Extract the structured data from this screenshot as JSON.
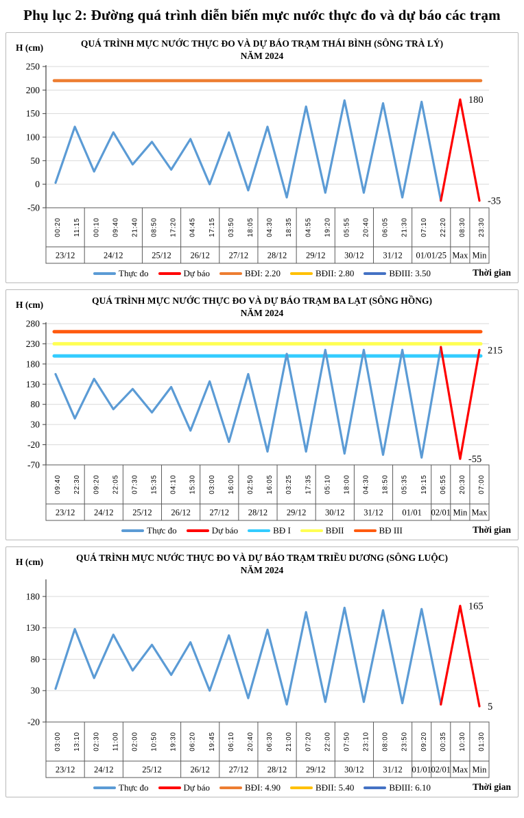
{
  "page": {
    "title": "Phụ lục 2: Đường quá trình diễn biến mực nước thực đo và dự báo các trạm"
  },
  "chart_data": [
    {
      "type": "line",
      "title": "QUÁ TRÌNH MỰC NƯỚC THỰC ĐO VÀ DỰ BÁO TRẠM THÁI BÌNH (SÔNG TRÀ LÝ)\nNĂM 2024",
      "y_unit": "H (cm)",
      "x_axis_label": "Thời gian",
      "y_ticks": [
        250,
        200,
        150,
        100,
        50,
        0,
        -50
      ],
      "y_min": -50,
      "y_max": 250,
      "grid": true,
      "times": [
        "00:20",
        "11:15",
        "00:10",
        "09:40",
        "21:40",
        "08:50",
        "17:20",
        "04:45",
        "17:15",
        "03:50",
        "18:05",
        "04:30",
        "18:35",
        "04:55",
        "19:20",
        "05:55",
        "20:40",
        "06:05",
        "21:30",
        "07:10",
        "22:20",
        "08:30",
        "23:30"
      ],
      "date_groups": [
        {
          "label": "23/12",
          "count": 2
        },
        {
          "label": "24/12",
          "count": 3
        },
        {
          "label": "25/12",
          "count": 2
        },
        {
          "label": "26/12",
          "count": 2
        },
        {
          "label": "27/12",
          "count": 2
        },
        {
          "label": "28/12",
          "count": 2
        },
        {
          "label": "29/12",
          "count": 2
        },
        {
          "label": "30/12",
          "count": 2
        },
        {
          "label": "31/12",
          "count": 2
        },
        {
          "label": "01/01/25",
          "count": 2
        },
        {
          "label": "Max",
          "count": 1
        },
        {
          "label": "Min",
          "count": 1
        }
      ],
      "series": [
        {
          "name": "Thực đo",
          "color": "#5B9BD5",
          "start_index": 0,
          "values": [
            3,
            122,
            27,
            110,
            42,
            90,
            31,
            96,
            0,
            110,
            -13,
            122,
            -28,
            165,
            -18,
            178,
            -18,
            172,
            -28,
            175,
            -35
          ]
        },
        {
          "name": "Dự báo",
          "color": "#FF0000",
          "start_index": 20,
          "values": [
            -35,
            180,
            -35
          ]
        }
      ],
      "ref_lines": [
        {
          "name": "BĐI",
          "value": 220,
          "color": "#ED7D31",
          "width": 4.5
        }
      ],
      "annotations": [
        {
          "text": "180",
          "index": 21,
          "value": 180
        },
        {
          "text": "-35",
          "index": 22,
          "value": -35
        }
      ],
      "legend": [
        {
          "label": "Thực đo",
          "color": "#5B9BD5"
        },
        {
          "label": "Dự báo",
          "color": "#FF0000"
        },
        {
          "label": "BĐI: 2.20",
          "color": "#ED7D31"
        },
        {
          "label": "BĐII: 2.80",
          "color": "#FFC000"
        },
        {
          "label": "BĐIII: 3.50",
          "color": "#4472C4"
        }
      ]
    },
    {
      "type": "line",
      "title": "QUÁ TRÌNH MỰC NƯỚC THỰC ĐO VÀ DỰ BÁO TRẠM BA LẠT (SÔNG HỒNG)\nNĂM 2024",
      "y_unit": "H (cm)",
      "x_axis_label": "Thời gian",
      "y_ticks": [
        280,
        230,
        180,
        130,
        80,
        30,
        -20,
        -70
      ],
      "y_min": -70,
      "y_max": 280,
      "grid": true,
      "times": [
        "09:40",
        "22:30",
        "09:20",
        "22:05",
        "07:30",
        "15:35",
        "04:10",
        "15:30",
        "03:00",
        "16:00",
        "02:50",
        "16:05",
        "03:25",
        "17:35",
        "05:10",
        "18:00",
        "04:30",
        "18:50",
        "05:35",
        "19:15",
        "06:55",
        "20:30",
        "07:00"
      ],
      "date_groups": [
        {
          "label": "23/12",
          "count": 2
        },
        {
          "label": "24/12",
          "count": 2
        },
        {
          "label": "25/12",
          "count": 2
        },
        {
          "label": "26/12",
          "count": 2
        },
        {
          "label": "27/12",
          "count": 2
        },
        {
          "label": "28/12",
          "count": 2
        },
        {
          "label": "29/12",
          "count": 2
        },
        {
          "label": "30/12",
          "count": 2
        },
        {
          "label": "31/12",
          "count": 2
        },
        {
          "label": "01/01",
          "count": 2
        },
        {
          "label": "02/01",
          "count": 1
        },
        {
          "label": "Min",
          "count": 1
        },
        {
          "label": "Max",
          "count": 1
        }
      ],
      "series": [
        {
          "name": "Thực đo",
          "color": "#5B9BD5",
          "start_index": 0,
          "values": [
            155,
            45,
            143,
            68,
            118,
            60,
            123,
            15,
            137,
            -13,
            155,
            -37,
            205,
            -37,
            215,
            -42,
            215,
            -45,
            215,
            -52,
            222
          ]
        },
        {
          "name": "Dự báo",
          "color": "#FF0000",
          "start_index": 20,
          "values": [
            222,
            -55,
            215
          ]
        }
      ],
      "ref_lines": [
        {
          "name": "BĐ III",
          "value": 260,
          "color": "#FF5A0F",
          "width": 5
        },
        {
          "name": "BĐII",
          "value": 230,
          "color": "#FFFF54",
          "width": 5
        },
        {
          "name": "BĐ I",
          "value": 200,
          "color": "#33CCFF",
          "width": 5
        }
      ],
      "annotations": [
        {
          "text": "215",
          "index": 22,
          "value": 215
        },
        {
          "text": "-55",
          "index": 21,
          "value": -55
        }
      ],
      "legend": [
        {
          "label": "Thực đo",
          "color": "#5B9BD5"
        },
        {
          "label": "Dự báo",
          "color": "#FF0000"
        },
        {
          "label": "BĐ I",
          "color": "#33CCFF"
        },
        {
          "label": "BĐII",
          "color": "#FFFF54"
        },
        {
          "label": "BĐ III",
          "color": "#FF5A0F"
        }
      ]
    },
    {
      "type": "line",
      "title": "QUÁ TRÌNH MỰC NƯỚC THỰC ĐO VÀ DỰ BÁO TRẠM TRIỀU DƯƠNG (SÔNG LUỘC)\nNĂM 2024",
      "y_unit": "H (cm)",
      "x_axis_label": "Thời gian",
      "y_ticks": [
        180,
        130,
        80,
        30,
        -20
      ],
      "y_min": -20,
      "y_max": 205,
      "grid": true,
      "times": [
        "03:00",
        "13:10",
        "02:30",
        "11:00",
        "02:00",
        "10:50",
        "19:30",
        "06:20",
        "19:45",
        "06:10",
        "20:40",
        "06:30",
        "21:00",
        "07:20",
        "22:00",
        "07:50",
        "23:10",
        "08:00",
        "23:50",
        "09:20",
        "00:35",
        "10:30",
        "01:30"
      ],
      "date_groups": [
        {
          "label": "23/12",
          "count": 2
        },
        {
          "label": "24/12",
          "count": 2
        },
        {
          "label": "25/12",
          "count": 3
        },
        {
          "label": "26/12",
          "count": 2
        },
        {
          "label": "27/12",
          "count": 2
        },
        {
          "label": "28/12",
          "count": 2
        },
        {
          "label": "29/12",
          "count": 2
        },
        {
          "label": "30/12",
          "count": 2
        },
        {
          "label": "31/12",
          "count": 2
        },
        {
          "label": "01/01",
          "count": 1
        },
        {
          "label": "02/01",
          "count": 1
        },
        {
          "label": "Max",
          "count": 1
        },
        {
          "label": "Min",
          "count": 1
        }
      ],
      "series": [
        {
          "name": "Thực đo",
          "color": "#5B9BD5",
          "start_index": 0,
          "values": [
            33,
            128,
            50,
            119,
            62,
            103,
            55,
            107,
            30,
            118,
            18,
            127,
            8,
            155,
            12,
            162,
            12,
            158,
            10,
            160,
            8
          ]
        },
        {
          "name": "Dự báo",
          "color": "#FF0000",
          "start_index": 20,
          "values": [
            8,
            165,
            5
          ]
        }
      ],
      "ref_lines": [],
      "annotations": [
        {
          "text": "165",
          "index": 21,
          "value": 165
        },
        {
          "text": "5",
          "index": 22,
          "value": 5
        }
      ],
      "legend": [
        {
          "label": "Thực đo",
          "color": "#5B9BD5"
        },
        {
          "label": "Dự báo",
          "color": "#FF0000"
        },
        {
          "label": "BĐI: 4.90",
          "color": "#ED7D31"
        },
        {
          "label": "BĐII: 5.40",
          "color": "#FFC000"
        },
        {
          "label": "BĐIII: 6.10",
          "color": "#4472C4"
        }
      ]
    }
  ]
}
